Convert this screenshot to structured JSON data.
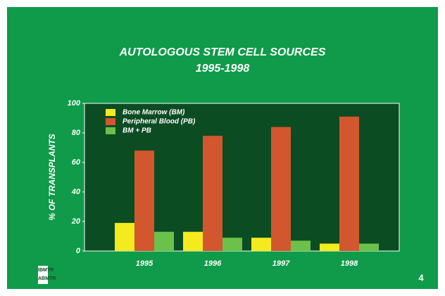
{
  "chart_data": {
    "type": "bar",
    "title": "AUTOLOGOUS STEM CELL SOURCES",
    "subtitle": "1995-1998",
    "y_label": "% OF TRANSPLANTS",
    "categories": [
      "1995",
      "1996",
      "1997",
      "1998"
    ],
    "series": [
      {
        "name": "Bone Marrow (BM)",
        "color": "#f4ea1e",
        "values": [
          19,
          13,
          9,
          5
        ]
      },
      {
        "name": "Peripheral Blood (PB)",
        "color": "#d2572f",
        "values": [
          68,
          78,
          84,
          91
        ]
      },
      {
        "name": "BM + PB",
        "color": "#6cc14b",
        "values": [
          13,
          9,
          7,
          5
        ]
      }
    ],
    "ylim": [
      0,
      100
    ],
    "yticks": [
      0,
      20,
      40,
      60,
      80,
      100
    ],
    "legend": "upper left"
  },
  "logo": [
    "IBMTR",
    "ABMTR"
  ],
  "page_number": "4"
}
